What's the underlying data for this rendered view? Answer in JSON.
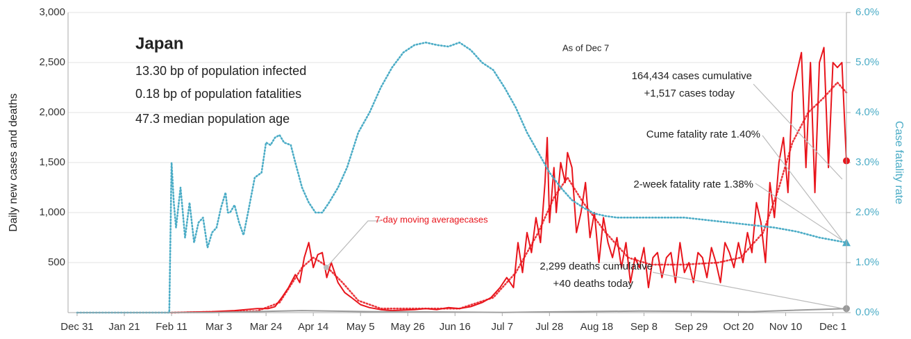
{
  "chart_data": {
    "type": "line",
    "title": "Japan",
    "info_lines": [
      "13.30 bp of population infected",
      "0.18 bp of population fatalities",
      "47.3 median population age"
    ],
    "as_of": "As of Dec 7",
    "y_label": "Daily new cases and deaths",
    "y2_label": "Case fatality rate",
    "xlim": [
      0,
      342
    ],
    "xticks": [
      {
        "value": 0,
        "label": "Dec 31"
      },
      {
        "value": 21,
        "label": "Jan 21"
      },
      {
        "value": 42,
        "label": "Feb 11"
      },
      {
        "value": 63,
        "label": "Mar 3"
      },
      {
        "value": 84,
        "label": "Mar 24"
      },
      {
        "value": 105,
        "label": "Apr 14"
      },
      {
        "value": 126,
        "label": "May 5"
      },
      {
        "value": 147,
        "label": "May 26"
      },
      {
        "value": 168,
        "label": "Jun 16"
      },
      {
        "value": 189,
        "label": "Jul 7"
      },
      {
        "value": 210,
        "label": "Jul 28"
      },
      {
        "value": 231,
        "label": "Aug 18"
      },
      {
        "value": 252,
        "label": "Sep 8"
      },
      {
        "value": 273,
        "label": "Sep 29"
      },
      {
        "value": 294,
        "label": "Oct 20"
      },
      {
        "value": 315,
        "label": "Nov 10"
      },
      {
        "value": 336,
        "label": "Dec 1"
      }
    ],
    "ylim": [
      0,
      3000
    ],
    "yticks": [
      500,
      {
        "value": 1000,
        "label": "1,000"
      },
      {
        "value": 1500,
        "label": "1,500"
      },
      {
        "value": 2000,
        "label": "2,000"
      },
      {
        "value": 2500,
        "label": "2,500"
      },
      {
        "value": 3000,
        "label": "3,000"
      }
    ],
    "y2lim": [
      0,
      6
    ],
    "y2ticks": [
      {
        "value": 0,
        "label": "0.0%"
      },
      {
        "value": 1,
        "label": "1.0%"
      },
      {
        "value": 2,
        "label": "2.0%"
      },
      {
        "value": 3,
        "label": "3.0%"
      },
      {
        "value": 4,
        "label": "4.0%"
      },
      {
        "value": 5,
        "label": "5.0%"
      },
      {
        "value": 6,
        "label": "6.0%"
      }
    ],
    "grid": true,
    "series": [
      {
        "color": "#e8141b",
        "style": "solid",
        "end_marker": "circle",
        "x": [
          0,
          42,
          50,
          60,
          70,
          80,
          85,
          88,
          91,
          94,
          97,
          99,
          101,
          103,
          105,
          107,
          109,
          111,
          113,
          116,
          119,
          122,
          126,
          130,
          135,
          140,
          145,
          150,
          155,
          160,
          165,
          170,
          175,
          180,
          184,
          188,
          191,
          194,
          196,
          198,
          200,
          202,
          204,
          206,
          208,
          209,
          210,
          212,
          213,
          215,
          217,
          218,
          220,
          222,
          224,
          226,
          228,
          230,
          232,
          234,
          236,
          238,
          240,
          242,
          244,
          246,
          248,
          250,
          252,
          254,
          256,
          258,
          260,
          262,
          264,
          266,
          268,
          270,
          272,
          274,
          276,
          278,
          280,
          282,
          284,
          286,
          288,
          290,
          292,
          294,
          296,
          298,
          300,
          302,
          304,
          306,
          308,
          310,
          312,
          314,
          316,
          318,
          320,
          322,
          324,
          326,
          328,
          330,
          332,
          334,
          336,
          338,
          340,
          342
        ],
        "values": [
          0,
          0,
          5,
          10,
          20,
          40,
          40,
          60,
          150,
          250,
          380,
          300,
          550,
          700,
          450,
          580,
          600,
          350,
          500,
          300,
          200,
          150,
          80,
          50,
          30,
          20,
          25,
          30,
          40,
          30,
          50,
          40,
          60,
          100,
          150,
          250,
          350,
          250,
          700,
          400,
          800,
          600,
          950,
          700,
          1300,
          1750,
          900,
          1450,
          1000,
          1500,
          1300,
          1600,
          1450,
          800,
          1000,
          1300,
          750,
          1000,
          500,
          950,
          700,
          550,
          750,
          450,
          700,
          300,
          550,
          450,
          650,
          250,
          550,
          600,
          350,
          550,
          600,
          300,
          700,
          400,
          500,
          300,
          600,
          550,
          350,
          650,
          500,
          300,
          700,
          600,
          450,
          700,
          500,
          800,
          600,
          1100,
          900,
          500,
          1300,
          950,
          1500,
          1750,
          1200,
          2200,
          2400,
          2600,
          1450,
          2500,
          1200,
          2500,
          2650,
          1450,
          2500,
          2450,
          2500,
          1517
        ]
      },
      {
        "color": "#e8141b",
        "style": "dotted",
        "x": [
          42,
          80,
          90,
          100,
          105,
          110,
          118,
          125,
          135,
          170,
          185,
          195,
          205,
          212,
          218,
          225,
          235,
          245,
          255,
          270,
          285,
          295,
          305,
          312,
          318,
          325,
          332,
          338,
          342
        ],
        "values": [
          0,
          15,
          100,
          450,
          550,
          480,
          300,
          120,
          40,
          40,
          150,
          400,
          800,
          1150,
          1350,
          1100,
          800,
          550,
          480,
          480,
          500,
          550,
          800,
          1250,
          1700,
          2000,
          2150,
          2300,
          2200
        ]
      },
      {
        "color": "#999999",
        "style": "solid",
        "end_marker": "circle",
        "x": [
          0,
          60,
          100,
          130,
          190,
          220,
          250,
          300,
          342
        ],
        "values": [
          0,
          1,
          20,
          10,
          2,
          10,
          15,
          10,
          40
        ]
      },
      {
        "color": "#4bacc6",
        "style": "dotted",
        "axis": "y2",
        "end_marker": "triangle",
        "x": [
          0,
          41,
          42,
          43,
          44,
          46,
          47,
          48,
          50,
          52,
          54,
          56,
          58,
          60,
          62,
          64,
          66,
          67,
          68,
          70,
          72,
          74,
          76,
          79,
          82,
          84,
          86,
          88,
          90,
          92,
          95,
          97,
          100,
          103,
          106,
          109,
          112,
          116,
          120,
          125,
          130,
          135,
          140,
          145,
          150,
          155,
          160,
          165,
          170,
          175,
          180,
          185,
          190,
          195,
          200,
          205,
          210,
          215,
          220,
          225,
          230,
          235,
          240,
          250,
          270,
          290,
          310,
          320,
          330,
          342
        ],
        "values": [
          0,
          0,
          3.0,
          2.2,
          1.7,
          2.5,
          2.0,
          1.5,
          2.2,
          1.4,
          1.8,
          1.9,
          1.3,
          1.6,
          1.7,
          2.1,
          2.4,
          2.0,
          2.0,
          2.15,
          1.8,
          1.55,
          2.0,
          2.7,
          2.8,
          3.4,
          3.35,
          3.5,
          3.55,
          3.4,
          3.35,
          3.0,
          2.5,
          2.2,
          2.0,
          2.0,
          2.2,
          2.5,
          2.9,
          3.6,
          4.0,
          4.5,
          4.9,
          5.2,
          5.35,
          5.4,
          5.35,
          5.32,
          5.4,
          5.25,
          5.0,
          4.85,
          4.5,
          4.1,
          3.6,
          3.2,
          2.8,
          2.5,
          2.25,
          2.1,
          1.98,
          1.93,
          1.9,
          1.9,
          1.9,
          1.8,
          1.7,
          1.62,
          1.5,
          1.4
        ]
      }
    ],
    "annotations": {
      "moving_average": "7-day moving averagecases",
      "cases": [
        "164,434 cases cumulative",
        "+1,517 cases today"
      ],
      "cume_fatality": "Cume fatality rate 1.40%",
      "two_week_fatality": "2-week fatality rate 1.38%",
      "deaths": [
        "2,299 deaths cumulative",
        "+40 deaths today"
      ]
    }
  }
}
